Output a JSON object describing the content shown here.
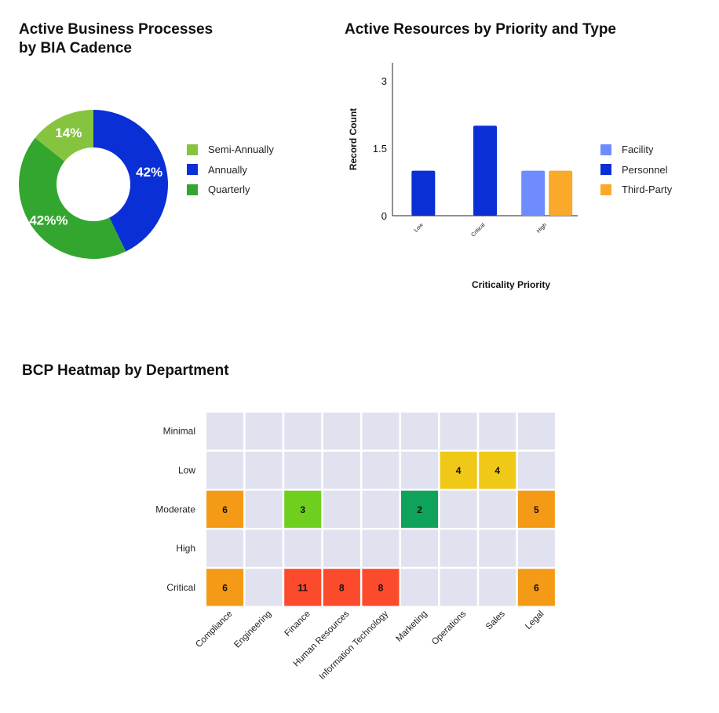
{
  "chart_data": [
    {
      "type": "pie",
      "title_lines": [
        "Active Business Processes",
        "by BIA Cadence"
      ],
      "slices": [
        {
          "label": "Annually",
          "value": 42,
          "display": "42%",
          "color": "#0a2fd6"
        },
        {
          "label": "Quarterly",
          "value": 42,
          "display": "42%%",
          "color": "#33a62f"
        },
        {
          "label": "Semi-Annually",
          "value": 14,
          "display": "14%",
          "color": "#86c440"
        }
      ],
      "legend": [
        {
          "label": "Semi-Annually",
          "color": "#86c440"
        },
        {
          "label": "Annually",
          "color": "#0a2fd6"
        },
        {
          "label": "Quarterly",
          "color": "#33a62f"
        }
      ],
      "legend_position": "right",
      "donut": true
    },
    {
      "type": "bar",
      "title": "Active Resources by Priority and Type",
      "xlabel": "Criticality Priority",
      "ylabel": "Record Count",
      "categories": [
        "Low",
        "Critical",
        "High"
      ],
      "ylim": [
        0,
        3.4
      ],
      "yticks": [
        0,
        1.5,
        3
      ],
      "ytick_labels": [
        "0",
        "1.5",
        "3"
      ],
      "series": [
        {
          "name": "Facility",
          "color": "#6f8cff",
          "values": [
            null,
            null,
            1
          ]
        },
        {
          "name": "Personnel",
          "color": "#0a2fd6",
          "values": [
            1,
            2,
            null
          ]
        },
        {
          "name": "Third-Party",
          "color": "#fba92b",
          "values": [
            null,
            null,
            1
          ]
        }
      ],
      "legend_position": "right",
      "grid": false
    },
    {
      "type": "heatmap",
      "title": "BCP Heatmap by Department",
      "rows": [
        "Minimal",
        "Low",
        "Moderate",
        "High",
        "Critical"
      ],
      "columns": [
        "Compliance",
        "Engineering",
        "Finance",
        "Human Resources",
        "Information Technology",
        "Marketing",
        "Operations",
        "Sales",
        "Legal"
      ],
      "values": [
        [
          null,
          null,
          null,
          null,
          null,
          null,
          null,
          null,
          null
        ],
        [
          null,
          null,
          null,
          null,
          null,
          null,
          4,
          4,
          null
        ],
        [
          6,
          null,
          3,
          null,
          null,
          2,
          null,
          null,
          5
        ],
        [
          null,
          null,
          null,
          null,
          null,
          null,
          null,
          null,
          null
        ],
        [
          6,
          null,
          11,
          8,
          8,
          null,
          null,
          null,
          6
        ]
      ],
      "cell_colors": [
        [
          null,
          null,
          null,
          null,
          null,
          null,
          null,
          null,
          null
        ],
        [
          null,
          null,
          null,
          null,
          null,
          null,
          "#f0c817",
          "#f0c817",
          null
        ],
        [
          "#f59a17",
          null,
          "#6fcf1f",
          null,
          null,
          "#0ea25a",
          null,
          null,
          "#f59a17"
        ],
        [
          null,
          null,
          null,
          null,
          null,
          null,
          null,
          null,
          null
        ],
        [
          "#f59a17",
          null,
          "#fc4a2c",
          "#fc4a2c",
          "#fc4a2c",
          null,
          null,
          null,
          "#f59a17"
        ]
      ],
      "empty_color": "#e1e2ef"
    }
  ]
}
